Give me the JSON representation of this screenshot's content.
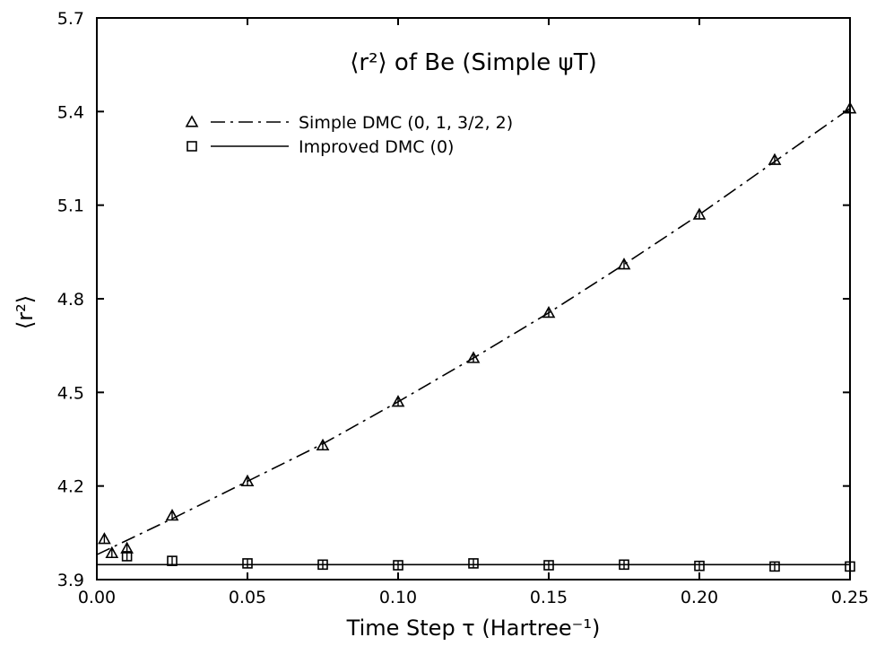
{
  "chart_data": {
    "type": "line",
    "title": "⟨r²⟩ of Be (Simple ψT)",
    "xlabel": "Time Step τ (Hartree⁻¹)",
    "ylabel": "⟨r²⟩",
    "xlim": [
      0.0,
      0.25
    ],
    "ylim": [
      3.9,
      5.7
    ],
    "x_ticks": [
      "0.00",
      "0.05",
      "0.10",
      "0.15",
      "0.20",
      "0.25"
    ],
    "y_ticks": [
      "3.9",
      "4.2",
      "4.5",
      "4.8",
      "5.1",
      "5.4",
      "5.7"
    ],
    "grid": false,
    "legend_position": "top-left",
    "series": [
      {
        "name": "Simple DMC (0, 1, 3/2, 2)",
        "marker": "triangle",
        "line_style": "dash-dot",
        "x": [
          0.0025,
          0.005,
          0.01,
          0.025,
          0.05,
          0.075,
          0.1,
          0.125,
          0.15,
          0.175,
          0.2,
          0.225,
          0.25
        ],
        "y": [
          4.03,
          3.985,
          4.0,
          4.105,
          4.215,
          4.33,
          4.47,
          4.61,
          4.755,
          4.91,
          5.07,
          5.245,
          5.41
        ],
        "fit_x": [
          0.0,
          0.025,
          0.05,
          0.075,
          0.1,
          0.125,
          0.15,
          0.175,
          0.2,
          0.225,
          0.25
        ],
        "fit_y": [
          3.98,
          4.095,
          4.215,
          4.335,
          4.47,
          4.61,
          4.755,
          4.91,
          5.07,
          5.24,
          5.41
        ]
      },
      {
        "name": "Improved DMC (0)",
        "marker": "square",
        "line_style": "solid",
        "x": [
          0.01,
          0.025,
          0.05,
          0.075,
          0.1,
          0.125,
          0.15,
          0.175,
          0.2,
          0.225,
          0.25
        ],
        "y": [
          3.975,
          3.96,
          3.952,
          3.948,
          3.946,
          3.952,
          3.946,
          3.948,
          3.944,
          3.942,
          3.942
        ],
        "fit_x": [
          0.0,
          0.25
        ],
        "fit_y": [
          3.948,
          3.948
        ]
      }
    ],
    "colors": {
      "axes": "#000000",
      "background": "#ffffff"
    }
  }
}
